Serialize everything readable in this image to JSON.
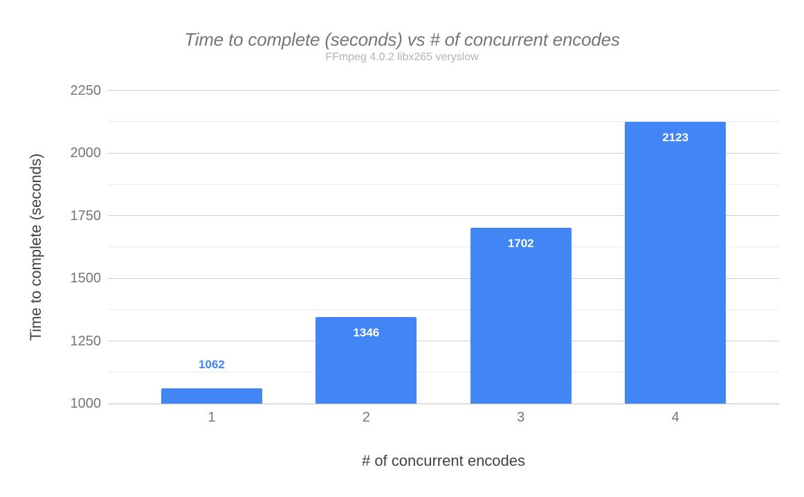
{
  "chart_data": {
    "type": "bar",
    "title": "Time to complete (seconds) vs # of concurrent encodes",
    "subtitle": "FFmpeg 4.0.2 libx265 veryslow",
    "xlabel": "# of concurrent encodes",
    "ylabel": "Time to complete (seconds)",
    "categories": [
      "1",
      "2",
      "3",
      "4"
    ],
    "values": [
      1062,
      1346,
      1702,
      2123
    ],
    "value_labels": [
      "1062",
      "1346",
      "1702",
      "2123"
    ],
    "ylim": [
      1000,
      2250
    ],
    "y_major_ticks": [
      1000,
      1250,
      1500,
      1750,
      2000,
      2250
    ],
    "y_minor_ticks": [
      1125,
      1375,
      1625,
      1875,
      2125
    ],
    "grid": true,
    "legend_position": "none",
    "colors": {
      "bar": "#4285f4",
      "value_label_inside": "#ffffff",
      "value_label_outside": "#4285f4",
      "title": "#757575",
      "subtitle": "#b3b3b3",
      "tick_label": "#757575",
      "axis_title": "#424242",
      "gridline_major": "#cccccc",
      "gridline_minor": "#ebebeb",
      "baseline": "#c0c0c0",
      "background": "#ffffff"
    }
  }
}
